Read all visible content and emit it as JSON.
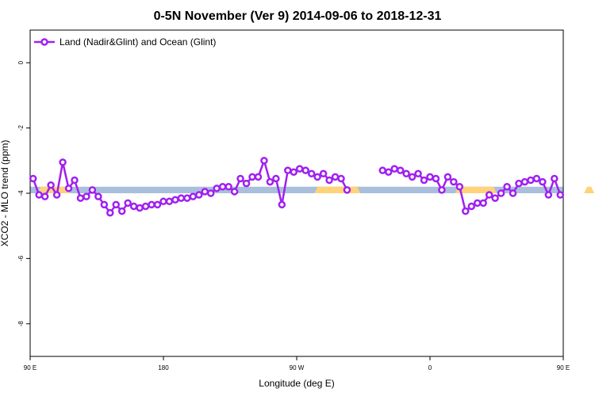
{
  "chart_data": {
    "type": "line",
    "title": "0-5N November (Ver 9)   2014-09-06 to 2018-12-31",
    "xlabel": "Longitude (deg E)",
    "ylabel": "XCO2 - MLO trend (ppm)",
    "xlim": [
      90,
      450
    ],
    "ylim": [
      -9.0,
      1.0
    ],
    "x_ticks": [
      {
        "value": 90,
        "label": "90 E"
      },
      {
        "value": 180,
        "label": "180"
      },
      {
        "value": 270,
        "label": "90 W"
      },
      {
        "value": 360,
        "label": "0"
      },
      {
        "value": 450,
        "label": "90 E"
      },
      {
        "value": 540,
        "label": "180"
      }
    ],
    "y_ticks": [
      {
        "value": 0,
        "label": "0"
      },
      {
        "value": -2,
        "label": "-2"
      },
      {
        "value": -4,
        "label": "-4"
      },
      {
        "value": -6,
        "label": "-6"
      },
      {
        "value": -8,
        "label": "-8"
      }
    ],
    "legend": {
      "position": "top-left",
      "entries": [
        "Land (Nadir&Glint) and Ocean (Glint)"
      ]
    },
    "series_color": "#a020f0",
    "band": {
      "y_low": -4.0,
      "y_high": -3.8,
      "ocean_color": "#a9bfdc",
      "land_color": "#ffd37a"
    },
    "land_segments": [
      [
        95,
        117
      ],
      [
        282,
        313
      ],
      [
        377,
        405
      ],
      [
        464,
        471
      ]
    ],
    "series": [
      {
        "name": "Land (Nadir&Glint) and Ocean (Glint)",
        "segments": [
          {
            "x": [
              92,
              96,
              100,
              104,
              108,
              112,
              116,
              120,
              124,
              128,
              132,
              136,
              140,
              144,
              148,
              152,
              156,
              160,
              164,
              168,
              172,
              176,
              180,
              184,
              188,
              192,
              196,
              200,
              204,
              208,
              212,
              216,
              220,
              224,
              228,
              232,
              236,
              240,
              244,
              248,
              252,
              256,
              260,
              264,
              268,
              272,
              276,
              280,
              284,
              288,
              292,
              296,
              300,
              304
            ],
            "y": [
              -3.55,
              -4.05,
              -4.1,
              -3.75,
              -4.05,
              -3.05,
              -3.85,
              -3.6,
              -4.15,
              -4.1,
              -3.9,
              -4.1,
              -4.35,
              -4.6,
              -4.35,
              -4.55,
              -4.3,
              -4.4,
              -4.45,
              -4.4,
              -4.35,
              -4.35,
              -4.25,
              -4.25,
              -4.2,
              -4.15,
              -4.15,
              -4.1,
              -4.05,
              -3.95,
              -4.0,
              -3.85,
              -3.8,
              -3.8,
              -3.95,
              -3.55,
              -3.7,
              -3.5,
              -3.5,
              -3.0,
              -3.65,
              -3.55,
              -4.35,
              -3.3,
              -3.35,
              -3.25,
              -3.3,
              -3.4,
              -3.5,
              -3.4,
              -3.6,
              -3.5,
              -3.55,
              -3.9
            ]
          },
          {
            "x": [
              328,
              332,
              336,
              340,
              344,
              348,
              352,
              356,
              360,
              364,
              368,
              372,
              376,
              380,
              384,
              388,
              392,
              396,
              400,
              404,
              408,
              412,
              416,
              420,
              424,
              428,
              432,
              436,
              440,
              444,
              448
            ],
            "y": [
              -3.3,
              -3.35,
              -3.25,
              -3.3,
              -3.4,
              -3.5,
              -3.4,
              -3.6,
              -3.5,
              -3.55,
              -3.9,
              -3.5,
              -3.65,
              -3.8,
              -4.55,
              -4.4,
              -4.3,
              -4.3,
              -4.05,
              -4.15,
              -4.0,
              -3.8,
              -4.0,
              -3.7,
              -3.65,
              -3.6,
              -3.55,
              -3.65,
              -4.05,
              -3.55,
              -4.05
            ]
          }
        ]
      }
    ]
  }
}
